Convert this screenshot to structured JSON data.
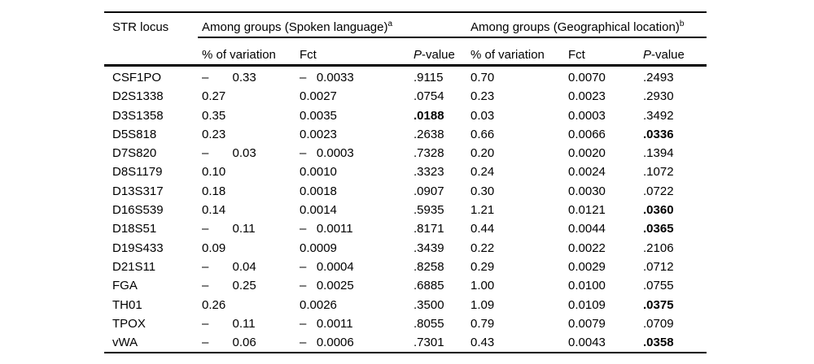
{
  "table": {
    "col1_header": "STR locus",
    "groups": [
      {
        "title": "Among groups (Spoken language)",
        "sup": "a"
      },
      {
        "title": "Among groups (Geographical location)",
        "sup": "b"
      }
    ],
    "subheaders": {
      "variation": "% of variation",
      "fct": "Fct",
      "p_italic": "P",
      "p_rest": "-value"
    },
    "rows": [
      {
        "locus": "CSF1PO",
        "sl_var": "–       0.33",
        "sl_fct": "–   0.0033",
        "sl_p": ".9115",
        "sl_p_bold": false,
        "geo_var": "0.70",
        "geo_fct": "0.0070",
        "geo_p": ".2493",
        "geo_p_bold": false
      },
      {
        "locus": "D2S1338",
        "sl_var": "0.27",
        "sl_fct": "0.0027",
        "sl_p": ".0754",
        "sl_p_bold": false,
        "geo_var": "0.23",
        "geo_fct": "0.0023",
        "geo_p": ".2930",
        "geo_p_bold": false
      },
      {
        "locus": "D3S1358",
        "sl_var": "0.35",
        "sl_fct": "0.0035",
        "sl_p": ".0188",
        "sl_p_bold": true,
        "geo_var": "0.03",
        "geo_fct": "0.0003",
        "geo_p": ".3492",
        "geo_p_bold": false
      },
      {
        "locus": "D5S818",
        "sl_var": "0.23",
        "sl_fct": "0.0023",
        "sl_p": ".2638",
        "sl_p_bold": false,
        "geo_var": "0.66",
        "geo_fct": "0.0066",
        "geo_p": ".0336",
        "geo_p_bold": true
      },
      {
        "locus": "D7S820",
        "sl_var": "–       0.03",
        "sl_fct": "–   0.0003",
        "sl_p": ".7328",
        "sl_p_bold": false,
        "geo_var": "0.20",
        "geo_fct": "0.0020",
        "geo_p": ".1394",
        "geo_p_bold": false
      },
      {
        "locus": "D8S1179",
        "sl_var": "0.10",
        "sl_fct": "0.0010",
        "sl_p": ".3323",
        "sl_p_bold": false,
        "geo_var": "0.24",
        "geo_fct": "0.0024",
        "geo_p": ".1072",
        "geo_p_bold": false
      },
      {
        "locus": "D13S317",
        "sl_var": "0.18",
        "sl_fct": "0.0018",
        "sl_p": ".0907",
        "sl_p_bold": false,
        "geo_var": "0.30",
        "geo_fct": "0.0030",
        "geo_p": ".0722",
        "geo_p_bold": false
      },
      {
        "locus": "D16S539",
        "sl_var": "0.14",
        "sl_fct": "0.0014",
        "sl_p": ".5935",
        "sl_p_bold": false,
        "geo_var": "1.21",
        "geo_fct": "0.0121",
        "geo_p": ".0360",
        "geo_p_bold": true
      },
      {
        "locus": "D18S51",
        "sl_var": "–       0.11",
        "sl_fct": "–   0.0011",
        "sl_p": ".8171",
        "sl_p_bold": false,
        "geo_var": "0.44",
        "geo_fct": "0.0044",
        "geo_p": ".0365",
        "geo_p_bold": true
      },
      {
        "locus": "D19S433",
        "sl_var": "0.09",
        "sl_fct": "0.0009",
        "sl_p": ".3439",
        "sl_p_bold": false,
        "geo_var": "0.22",
        "geo_fct": "0.0022",
        "geo_p": ".2106",
        "geo_p_bold": false
      },
      {
        "locus": "D21S11",
        "sl_var": "–       0.04",
        "sl_fct": "–   0.0004",
        "sl_p": ".8258",
        "sl_p_bold": false,
        "geo_var": "0.29",
        "geo_fct": "0.0029",
        "geo_p": ".0712",
        "geo_p_bold": false
      },
      {
        "locus": "FGA",
        "sl_var": "–       0.25",
        "sl_fct": "–   0.0025",
        "sl_p": ".6885",
        "sl_p_bold": false,
        "geo_var": "1.00",
        "geo_fct": "0.0100",
        "geo_p": ".0755",
        "geo_p_bold": false
      },
      {
        "locus": "TH01",
        "sl_var": "0.26",
        "sl_fct": "0.0026",
        "sl_p": ".3500",
        "sl_p_bold": false,
        "geo_var": "1.09",
        "geo_fct": "0.0109",
        "geo_p": ".0375",
        "geo_p_bold": true
      },
      {
        "locus": "TPOX",
        "sl_var": "–       0.11",
        "sl_fct": "–   0.0011",
        "sl_p": ".8055",
        "sl_p_bold": false,
        "geo_var": "0.79",
        "geo_fct": "0.0079",
        "geo_p": ".0709",
        "geo_p_bold": false
      },
      {
        "locus": "vWA",
        "sl_var": "–       0.06",
        "sl_fct": "–   0.0006",
        "sl_p": ".7301",
        "sl_p_bold": false,
        "geo_var": "0.43",
        "geo_fct": "0.0043",
        "geo_p": ".0358",
        "geo_p_bold": true
      }
    ]
  }
}
